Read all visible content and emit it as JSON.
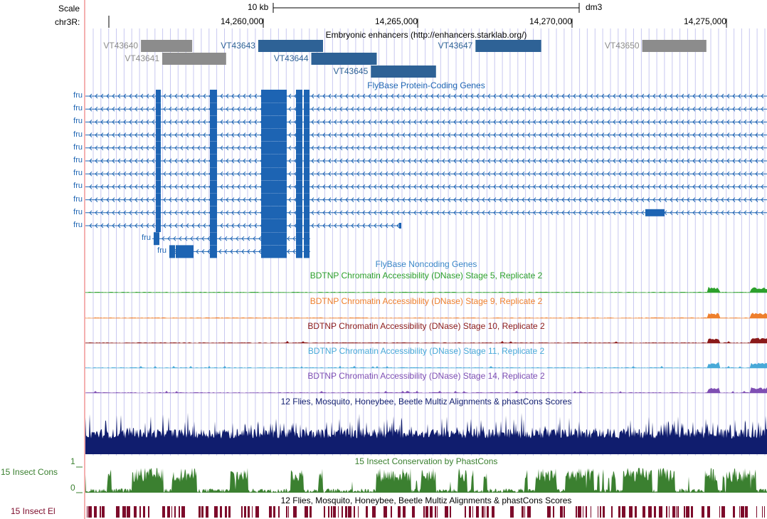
{
  "header": {
    "scale_label": "Scale",
    "scale_bar_text": "10 kb",
    "assembly": "dm3",
    "chrom_label": "chr3R:"
  },
  "ruler": {
    "ticks": [
      "14,260,000",
      "14,265,000",
      "14,270,000",
      "14,275,000"
    ]
  },
  "colors": {
    "gene": "#1d64b3",
    "enhancer_in": "#2e6296",
    "enhancer_out": "#8c8c8c",
    "stage5": "#2ca02c",
    "stage9": "#ee7f2d",
    "stage10": "#8b1a1a",
    "stage11": "#48a9d8",
    "stage14": "#7f4fb3",
    "multiz": "#101d6e",
    "cons": "#3b8030",
    "elements": "#7d0b2b",
    "guideline": "#c8c8f0",
    "left_border": "#f4b0b0"
  },
  "tracks": {
    "enhancers": {
      "title": "Embryonic enhancers (http://enhancers.starklab.org/)",
      "items": [
        {
          "name": "VT43640",
          "start": 14256880,
          "end": 14258540,
          "row": 0,
          "in_view": false
        },
        {
          "name": "VT43641",
          "start": 14257570,
          "end": 14259640,
          "row": 1,
          "in_view": false
        },
        {
          "name": "VT43643",
          "start": 14260680,
          "end": 14262780,
          "row": 0,
          "in_view": true
        },
        {
          "name": "VT43644",
          "start": 14262400,
          "end": 14264520,
          "row": 1,
          "in_view": true
        },
        {
          "name": "VT43645",
          "start": 14264330,
          "end": 14266440,
          "row": 2,
          "in_view": true
        },
        {
          "name": "VT43647",
          "start": 14267720,
          "end": 14269850,
          "row": 0,
          "in_view": true
        },
        {
          "name": "VT43650",
          "start": 14273120,
          "end": 14275200,
          "row": 0,
          "in_view": false
        }
      ]
    },
    "genes": {
      "title": "FlyBase Protein-Coding Genes",
      "transcripts": [
        {
          "label": "fru",
          "type": "full"
        },
        {
          "label": "fru",
          "type": "full"
        },
        {
          "label": "fru",
          "type": "full"
        },
        {
          "label": "fru",
          "type": "full"
        },
        {
          "label": "fru",
          "type": "full"
        },
        {
          "label": "fru",
          "type": "full"
        },
        {
          "label": "fru",
          "type": "full"
        },
        {
          "label": "fru",
          "type": "full"
        },
        {
          "label": "fru",
          "type": "full"
        },
        {
          "label": "fru",
          "type": "full-tail"
        },
        {
          "label": "fru",
          "type": "short-right"
        },
        {
          "label": "fru",
          "type": "short-left"
        },
        {
          "label": "fru",
          "type": "short-left2"
        }
      ]
    },
    "noncoding": {
      "title": "FlyBase Noncoding Genes"
    },
    "dnase": [
      {
        "title": "BDTNP Chromatin Accessibility (DNase) Stage 5, Replicate 2",
        "color_key": "stage5"
      },
      {
        "title": "BDTNP Chromatin Accessibility (DNase) Stage 9, Replicate 2",
        "color_key": "stage9"
      },
      {
        "title": "BDTNP Chromatin Accessibility (DNase) Stage 10, Replicate 2",
        "color_key": "stage10"
      },
      {
        "title": "BDTNP Chromatin Accessibility (DNase) Stage 11, Replicate 2",
        "color_key": "stage11"
      },
      {
        "title": "BDTNP Chromatin Accessibility (DNase) Stage 14, Replicate 2",
        "color_key": "stage14"
      }
    ],
    "multiz": {
      "title": "12 Flies, Mosquito, Honeybee, Beetle Multiz Alignments & phastCons Scores"
    },
    "cons": {
      "title": "15 Insect Conservation by PhastCons",
      "side_label": "15 Insect Cons",
      "axis_max": "1",
      "axis_min": "0"
    },
    "elements": {
      "title": "12 Flies, Mosquito, Honeybee, Beetle Multiz Alignments & phastCons Scores",
      "side_label": "15 Insect El"
    }
  }
}
